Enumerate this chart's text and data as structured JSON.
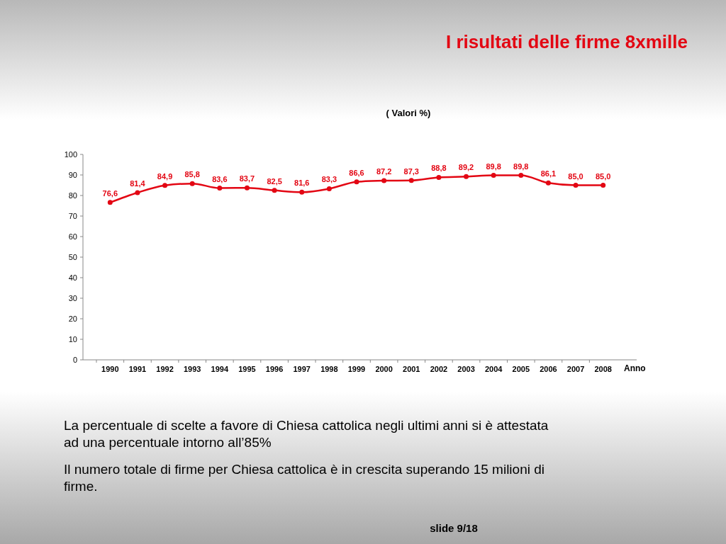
{
  "chart_data": {
    "type": "line",
    "title": "I risultati delle firme 8xmille",
    "subtitle": "( Valori %)",
    "xlabel": "Anno",
    "categories": [
      "1990",
      "1991",
      "1992",
      "1993",
      "1994",
      "1995",
      "1996",
      "1997",
      "1998",
      "1999",
      "2000",
      "2001",
      "2002",
      "2003",
      "2004",
      "2005",
      "2006",
      "2007",
      "2008"
    ],
    "series": [
      {
        "color": "#e30613",
        "values": [
          76.6,
          81.4,
          84.9,
          85.8,
          83.6,
          83.7,
          82.5,
          81.6,
          83.3,
          86.6,
          87.2,
          87.3,
          88.8,
          89.2,
          89.8,
          89.8,
          86.1,
          85.0,
          85.0
        ],
        "value_labels": [
          "76,6",
          "81,4",
          "84,9",
          "85,8",
          "83,6",
          "83,7",
          "82,5",
          "81,6",
          "83,3",
          "86,6",
          "87,2",
          "87,3",
          "88,8",
          "89,2",
          "89,8",
          "89,8",
          "86,1",
          "85,0",
          "85,0"
        ]
      }
    ],
    "ylim": [
      0,
      100
    ],
    "yticks": [
      0,
      10,
      20,
      30,
      40,
      50,
      60,
      70,
      80,
      90,
      100
    ],
    "grid": false,
    "marker": "circle",
    "line_style": "solid",
    "annotations": [
      "La percentuale di scelte a favore di Chiesa cattolica negli ultimi anni si è attestata ad una percentuale intorno all’85%",
      "Il numero totale di firme per Chiesa cattolica è in crescita superando 15 milioni di firme.",
      "slide 9/18"
    ]
  }
}
